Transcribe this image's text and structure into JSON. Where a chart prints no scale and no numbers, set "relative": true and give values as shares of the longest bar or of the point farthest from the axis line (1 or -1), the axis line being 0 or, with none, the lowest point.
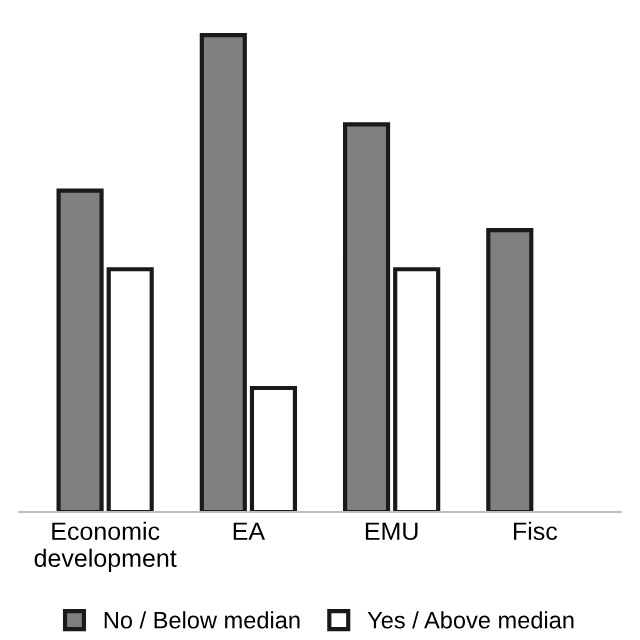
{
  "chart_data": {
    "type": "bar",
    "relative": true,
    "categories": [
      "Economic development",
      "EA",
      "EMU",
      "Fisc"
    ],
    "series": [
      {
        "name": "No / Below median",
        "color": "#808080",
        "values": [
          0.674,
          1,
          0.813,
          0.591
        ]
      },
      {
        "name": "Yes / Above median",
        "color": "#ffffff",
        "values": [
          0.509,
          0.26,
          0.509,
          null
        ]
      }
    ],
    "legend": "bottom",
    "grid": false
  }
}
